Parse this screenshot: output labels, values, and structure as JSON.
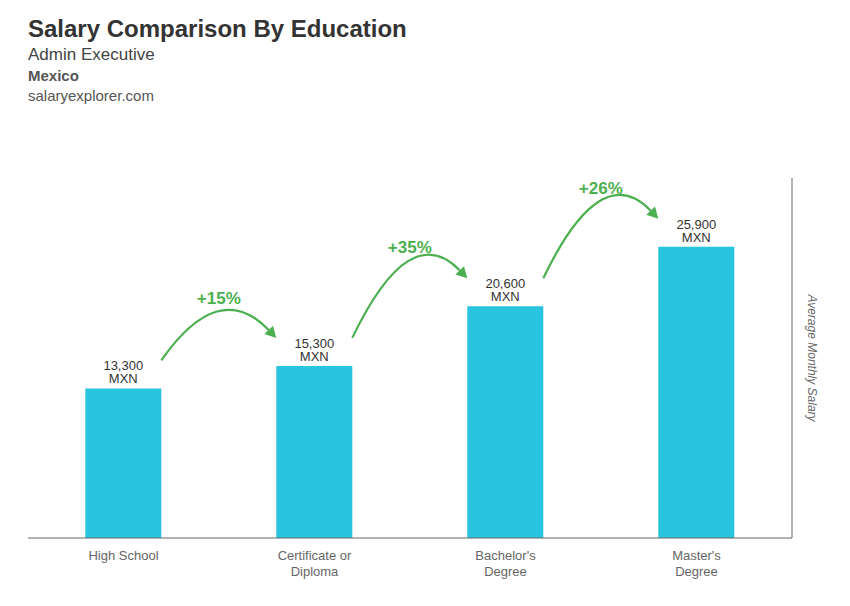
{
  "chart_data": {
    "type": "bar",
    "title": "Salary Comparison By Education",
    "subtitle": "Admin Executive",
    "annotations": [
      {
        "text": "Mexico"
      },
      {
        "text": "salaryexplorer.com"
      },
      {
        "text": "+15%",
        "from": "High School",
        "to": "Certificate or\nDiploma"
      },
      {
        "text": "+35%",
        "from": "Certificate or\nDiploma",
        "to": "Bachelor's\nDegree"
      },
      {
        "text": "+26%",
        "from": "Bachelor's\nDegree",
        "to": "Master's\nDegree"
      }
    ],
    "ylabel": "Average Monthly Salary",
    "categories": [
      "High School",
      "Certificate or\nDiploma",
      "Bachelor's\nDegree",
      "Master's\nDegree"
    ],
    "values": [
      13300,
      15300,
      20600,
      25900
    ],
    "value_labels": [
      "13,300 MXN",
      "15,300 MXN",
      "20,600 MXN",
      "25,900 MXN"
    ],
    "data_labels": true,
    "color": "#29c4e0",
    "ylim": [
      0,
      32000
    ],
    "grid": false,
    "tick_labels": "x"
  }
}
